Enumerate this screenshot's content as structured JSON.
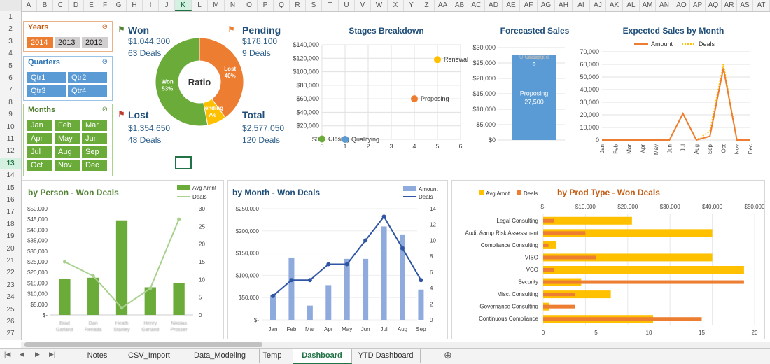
{
  "columns": [
    "A",
    "B",
    "C",
    "D",
    "E",
    "F",
    "G",
    "H",
    "I",
    "J",
    "K",
    "L",
    "M",
    "N",
    "O",
    "P",
    "Q",
    "R",
    "S",
    "T",
    "U",
    "V",
    "W",
    "X",
    "Y",
    "Z",
    "AA",
    "AB",
    "AC",
    "AD",
    "AE",
    "AF",
    "AG",
    "AH",
    "AI",
    "AJ",
    "AK",
    "AL",
    "AM",
    "AN",
    "AO",
    "AP",
    "AQ",
    "AR",
    "AS",
    "AT"
  ],
  "selected_column": "K",
  "rows": [
    "1",
    "2",
    "3",
    "4",
    "5",
    "6",
    "7",
    "8",
    "9",
    "10",
    "11",
    "12",
    "13",
    "14",
    "15",
    "16",
    "17",
    "18",
    "19",
    "20",
    "21",
    "22",
    "23",
    "24",
    "25",
    "26",
    "27"
  ],
  "selected_row": "13",
  "slicers": {
    "years": {
      "title": "Years",
      "items": [
        "2014",
        "2013",
        "2012"
      ],
      "selected": [
        "2014"
      ]
    },
    "quarters": {
      "title": "Quarters",
      "items": [
        "Qtr1",
        "Qtr2",
        "Qtr3",
        "Qtr4"
      ]
    },
    "months": {
      "title": "Months",
      "items": [
        "Jan",
        "Feb",
        "Mar",
        "Apr",
        "May",
        "Jun",
        "Jul",
        "Aug",
        "Sep",
        "Oct",
        "Nov",
        "Dec"
      ]
    }
  },
  "kpi": {
    "won": {
      "label": "Won",
      "amount": "$1,044,300",
      "deals": "63 Deals"
    },
    "pending": {
      "label": "Pending",
      "amount": "$178,100",
      "deals": "9 Deals"
    },
    "lost": {
      "label": "Lost",
      "amount": "$1,354,650",
      "deals": "48 Deals"
    },
    "total": {
      "label": "Total",
      "amount": "$2,577,050",
      "deals": "120 Deals"
    }
  },
  "colors": {
    "green": "#6aab3a",
    "orange": "#ed7d31",
    "yellow": "#ffc000",
    "blue": "#5b9bd5",
    "navy": "#1f4e79",
    "lightgreen": "#a9d18e",
    "lavender": "#8faadc",
    "darkblue": "#2f55a4"
  },
  "chart_data": [
    {
      "type": "pie",
      "title": "Ratio",
      "labels": [
        "Won",
        "Lost",
        "Pending"
      ],
      "values": [
        53,
        40,
        7
      ],
      "data_labels": [
        "Won\n53%",
        "Lost\n40%",
        "Pending\n7%"
      ]
    },
    {
      "type": "scatter",
      "title": "Stages Breakdown",
      "xlim": [
        0,
        6
      ],
      "ylim": [
        0,
        140000
      ],
      "x_ticks": [
        "0",
        "1",
        "2",
        "3",
        "4",
        "5",
        "6"
      ],
      "y_ticks": [
        "$0",
        "$20,000",
        "$40,000",
        "$60,000",
        "$80,000",
        "$100,000",
        "$120,000",
        "$140,000"
      ],
      "points": [
        {
          "label": "Closing",
          "x": 0,
          "y": 500,
          "color": "#6aab3a"
        },
        {
          "label": "Qualifying",
          "x": 1,
          "y": 0,
          "color": "#5b9bd5"
        },
        {
          "label": "Proposing",
          "x": 4,
          "y": 60000,
          "color": "#ed7d31"
        },
        {
          "label": "Renewal",
          "x": 5,
          "y": 118000,
          "color": "#ffc000"
        }
      ]
    },
    {
      "type": "bar",
      "title": "Forecasted Sales",
      "ylim": [
        0,
        30000
      ],
      "y_ticks": [
        "$0",
        "$5,000",
        "$10,000",
        "$15,000",
        "$20,000",
        "$25,000",
        "$30,000"
      ],
      "stack": [
        {
          "name": "Proposing",
          "value": 27500
        },
        {
          "name": "Unassigned",
          "value": 0
        },
        {
          "name": "Closing",
          "value": 0
        }
      ],
      "data_labels": [
        "0",
        "Proposing",
        "27,500"
      ]
    },
    {
      "type": "line",
      "title": "Expected Sales by Month",
      "categories": [
        "Jan",
        "Feb",
        "Mar",
        "Apr",
        "May",
        "Jun",
        "Jul",
        "Aug",
        "Sep",
        "Oct",
        "Nov",
        "Dec"
      ],
      "ylim": [
        0,
        70000
      ],
      "y_ticks": [
        "0",
        "10,000",
        "20,000",
        "30,000",
        "40,000",
        "50,000",
        "60,000",
        "70,000"
      ],
      "series": [
        {
          "name": "Amount",
          "values": [
            0,
            0,
            0,
            0,
            0,
            0,
            21000,
            0,
            3000,
            57000,
            0,
            0
          ]
        },
        {
          "name": "Deals",
          "values": [
            0,
            0,
            0,
            0,
            0,
            0,
            21000,
            0,
            7000,
            60000,
            0,
            0
          ]
        }
      ]
    },
    {
      "type": "bar",
      "title": "by Person - Won Deals",
      "categories": [
        "Brad Garland",
        "Dan Renada",
        "Heath Stanley",
        "Henry Garland",
        "Nikolas Prosser"
      ],
      "y_ticks": [
        "$-",
        "$5,000",
        "$10,000",
        "$15,000",
        "$20,000",
        "$25,000",
        "$30,000",
        "$35,000",
        "$40,000",
        "$45,000",
        "$50,000"
      ],
      "ylim": [
        0,
        50000
      ],
      "y2_ticks": [
        "0",
        "5",
        "10",
        "15",
        "20",
        "25",
        "30"
      ],
      "y2lim": [
        0,
        30
      ],
      "series": [
        {
          "name": "Avg Amnt",
          "values": [
            17000,
            17500,
            44500,
            13000,
            15000
          ]
        },
        {
          "name": "Deals",
          "values": [
            15,
            11,
            2,
            7.5,
            27
          ]
        }
      ]
    },
    {
      "type": "bar",
      "title": "by Month - Won Deals",
      "categories": [
        "Jan",
        "Feb",
        "Mar",
        "Apr",
        "May",
        "Jun",
        "Jul",
        "Aug",
        "Sep"
      ],
      "y_ticks": [
        "$-",
        "$50,000",
        "$100,000",
        "$150,000",
        "$200,000",
        "$250,000"
      ],
      "ylim": [
        0,
        250000
      ],
      "y2_ticks": [
        "0",
        "2",
        "4",
        "6",
        "8",
        "10",
        "12",
        "14"
      ],
      "y2lim": [
        0,
        14
      ],
      "series": [
        {
          "name": "Amount",
          "values": [
            55000,
            140000,
            32000,
            78000,
            137000,
            137000,
            210000,
            192000,
            68000
          ]
        },
        {
          "name": "Deals",
          "values": [
            3,
            5,
            5,
            7,
            7,
            10,
            13,
            9,
            5
          ]
        }
      ]
    },
    {
      "type": "bar",
      "title": "by Prod Type - Won Deals",
      "categories": [
        "Legal Consulting",
        "Audit &amp Risk Assessment",
        "Compliance Consulting",
        "VISO",
        "VCO",
        "Security",
        "Misc. Consulting",
        "Governance Consulting",
        "Continuous Compliance"
      ],
      "x_ticks": [
        "$-",
        "$10,000",
        "$20,000",
        "$30,000",
        "$40,000",
        "$50,000"
      ],
      "xlim": [
        0,
        50000
      ],
      "x2_ticks": [
        "0",
        "5",
        "10",
        "15",
        "20"
      ],
      "x2lim": [
        0,
        20
      ],
      "series": [
        {
          "name": "Avg Amnt",
          "values": [
            21000,
            40000,
            3000,
            40000,
            47500,
            9000,
            16000,
            1500,
            26000
          ]
        },
        {
          "name": "Deals",
          "values": [
            1,
            4,
            0.5,
            5,
            1,
            19,
            3,
            3,
            15
          ]
        }
      ]
    }
  ],
  "sheet_tabs": [
    "Notes",
    "CSV_Import",
    "Data_Modeling",
    "Temp",
    "Dashboard",
    "YTD Dashboard"
  ],
  "active_tab": "Dashboard"
}
